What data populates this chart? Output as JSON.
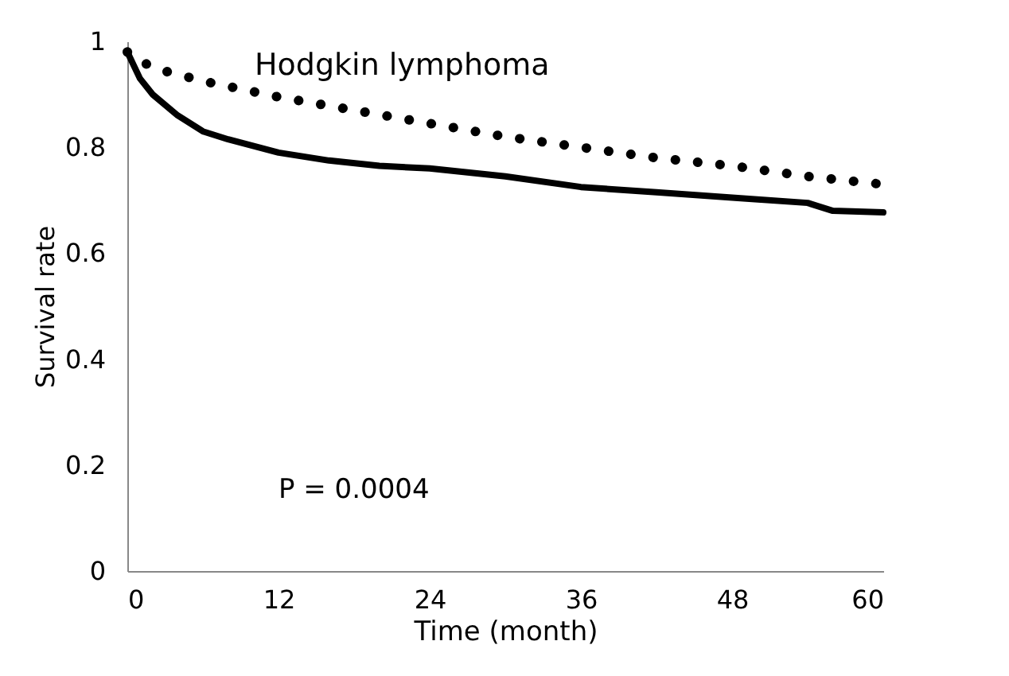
{
  "chart_data": {
    "type": "line",
    "title": "Hodgkin lymphoma",
    "xlabel": "Time (month)",
    "ylabel": "Survival rate",
    "xlim": [
      0,
      60
    ],
    "xticks": [
      0,
      12,
      24,
      36,
      48,
      60
    ],
    "ylim": [
      0,
      1
    ],
    "yticks": [
      0,
      0.2,
      0.4,
      0.6,
      0.8,
      1
    ],
    "grid": false,
    "legend": false,
    "marker": "none",
    "annotations": [
      "P = 0.0004"
    ],
    "series": [
      {
        "color": "#000000",
        "line_style": "solid",
        "x": [
          0,
          1,
          2,
          4,
          6,
          8,
          12,
          16,
          20,
          24,
          30,
          36,
          42,
          48,
          54,
          56,
          60
        ],
        "values": [
          0.98,
          0.93,
          0.9,
          0.86,
          0.83,
          0.815,
          0.79,
          0.775,
          0.765,
          0.76,
          0.745,
          0.725,
          0.715,
          0.705,
          0.695,
          0.68,
          0.677
        ]
      },
      {
        "color": "#000000",
        "line_style": "dotted",
        "x": [
          0,
          2,
          6,
          12,
          18,
          24,
          30,
          36,
          42,
          48,
          54,
          60
        ],
        "values": [
          0.98,
          0.95,
          0.925,
          0.895,
          0.87,
          0.845,
          0.82,
          0.8,
          0.78,
          0.765,
          0.745,
          0.73
        ]
      }
    ]
  }
}
